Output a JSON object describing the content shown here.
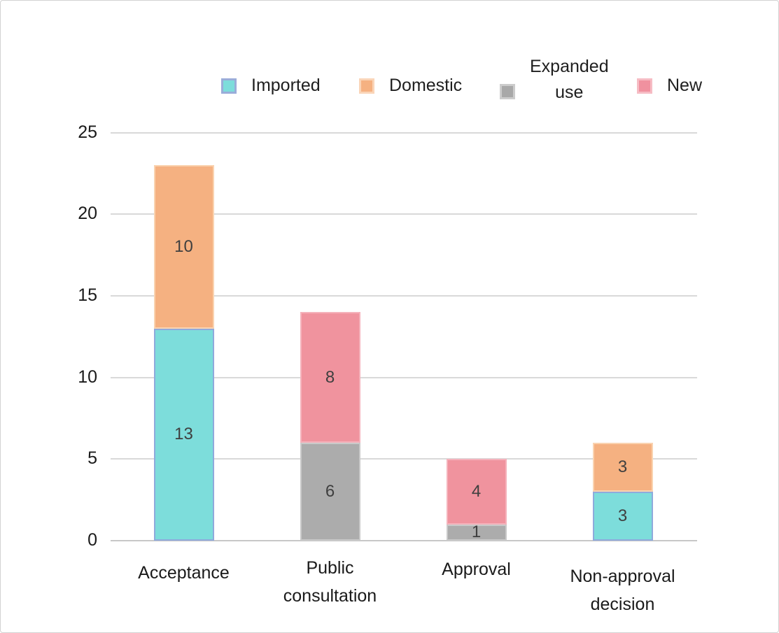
{
  "chart_data": {
    "type": "bar",
    "stacked": true,
    "title": "",
    "categories": [
      "Acceptance",
      "Public consultation",
      "Approval",
      "Non-approval decision"
    ],
    "category_lines": [
      [
        "Acceptance"
      ],
      [
        "Public",
        "consultation"
      ],
      [
        "Approval"
      ],
      [
        "Non-approval",
        "decision"
      ]
    ],
    "series": [
      {
        "name": "Imported",
        "color": "#7ddddb",
        "border_color": "#8faadc",
        "values": [
          13,
          0,
          0,
          3
        ]
      },
      {
        "name": "Domestic",
        "color": "#f5b181",
        "border_color": "#fad3b0",
        "values": [
          10,
          0,
          0,
          3
        ]
      },
      {
        "name": "Expanded use",
        "color": "#acacac",
        "border_color": "#c9c9c9",
        "values": [
          0,
          6,
          1,
          0
        ]
      },
      {
        "name": "New",
        "color": "#f0939e",
        "border_color": "#f5b2bb",
        "values": [
          0,
          8,
          4,
          0
        ]
      }
    ],
    "stack_totals": [
      23,
      14,
      5,
      6
    ],
    "data_labels": [
      [
        13,
        10
      ],
      [
        6,
        8
      ],
      [
        1,
        4
      ],
      [
        3,
        3
      ]
    ],
    "xlabel": "",
    "ylabel": "",
    "y_ticks": [
      0,
      5,
      10,
      15,
      20,
      25
    ],
    "ylim": [
      0,
      25
    ],
    "grid": true,
    "legend_position": "top",
    "gridline_color": "#d9d9d9",
    "baseline_color": "#c7c7c7"
  },
  "legend": {
    "items": [
      {
        "label": "Imported",
        "lines": [
          "Imported"
        ],
        "color": "#7ddddb",
        "border_color": "#9aadd9"
      },
      {
        "label": "Domestic",
        "lines": [
          "Domestic"
        ],
        "color": "#f5b181",
        "border_color": "#fad5b8"
      },
      {
        "label": "Expanded use",
        "lines": [
          "Expanded",
          "use"
        ],
        "color": "#a8a8a8",
        "border_color": "#cccccc"
      },
      {
        "label": "New",
        "lines": [
          "New"
        ],
        "color": "#f0919f",
        "border_color": "#f6bcc4"
      }
    ]
  }
}
